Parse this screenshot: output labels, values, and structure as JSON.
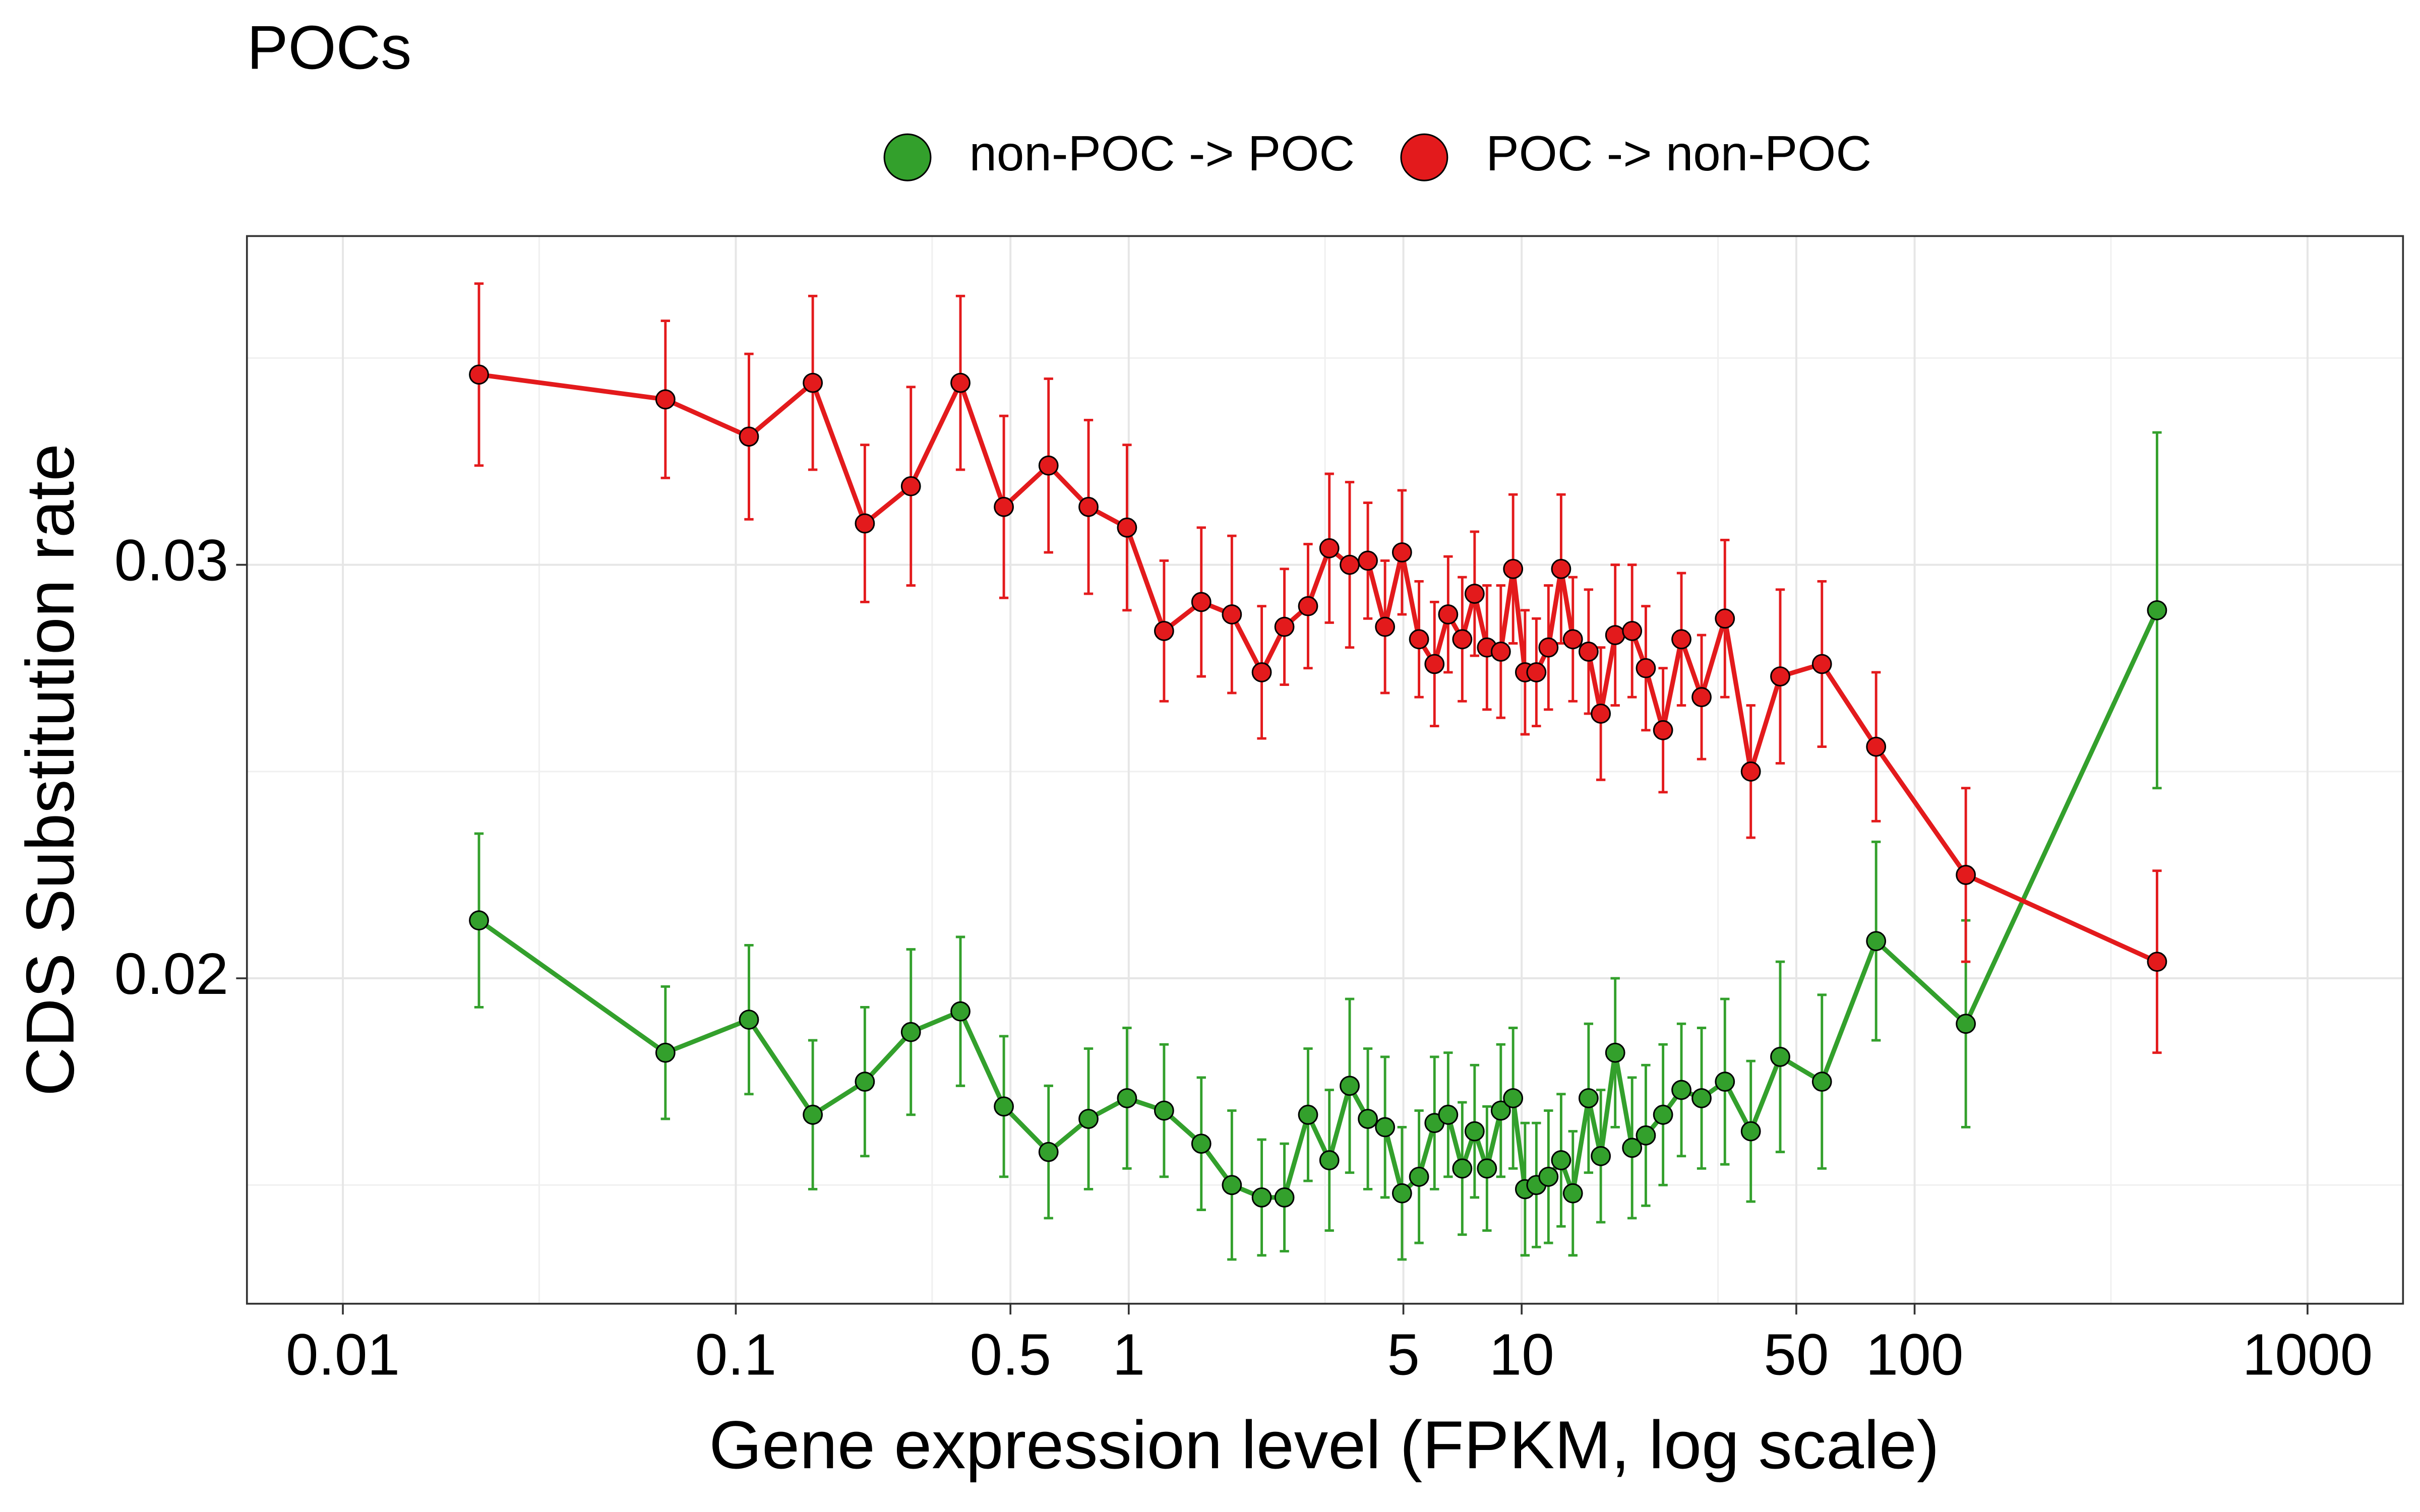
{
  "chart_data": {
    "type": "line",
    "title": "POCs",
    "x_label": "Gene expression level (FPKM, log scale)",
    "y_label": "CDS Substitution rate",
    "xlog": true,
    "grid": true,
    "xlim": [
      0.0057,
      1750
    ],
    "ylim": [
      0.01213,
      0.03795
    ],
    "xticks": [
      0.01,
      0.1,
      0.5,
      1,
      5,
      10,
      50,
      100,
      1000
    ],
    "yticks": [
      0.02,
      0.03
    ],
    "minor_xticks": [
      0.0316,
      0.316,
      3.16,
      31.6,
      316
    ],
    "minor_yticks": [
      0.015,
      0.025,
      0.035
    ],
    "legend": "top",
    "x": [
      0.0222,
      0.0662,
      0.108,
      0.157,
      0.213,
      0.279,
      0.373,
      0.481,
      0.625,
      0.79,
      0.99,
      1.23,
      1.53,
      1.83,
      2.18,
      2.49,
      2.86,
      3.24,
      3.65,
      4.06,
      4.49,
      4.96,
      5.48,
      6.0,
      6.5,
      7.06,
      7.59,
      8.16,
      8.85,
      9.51,
      10.2,
      10.9,
      11.7,
      12.6,
      13.5,
      14.8,
      15.9,
      17.3,
      19.1,
      20.7,
      22.9,
      25.5,
      28.7,
      32.9,
      38.3,
      45.5,
      58.1,
      79.8,
      135,
      414
    ],
    "series": [
      {
        "name": "non-POC -> POC",
        "color": "#33a02c",
        "values": [
          0.0214,
          0.0182,
          0.019,
          0.0167,
          0.0175,
          0.0187,
          0.0192,
          0.0169,
          0.0158,
          0.0166,
          0.0171,
          0.0168,
          0.016,
          0.015,
          0.0147,
          0.0147,
          0.0167,
          0.0156,
          0.0174,
          0.0166,
          0.0164,
          0.0148,
          0.0152,
          0.0165,
          0.0167,
          0.0154,
          0.0163,
          0.0154,
          0.0168,
          0.0171,
          0.0149,
          0.015,
          0.0152,
          0.0156,
          0.0148,
          0.0171,
          0.0157,
          0.0182,
          0.0159,
          0.0162,
          0.0167,
          0.0173,
          0.0171,
          0.0175,
          0.0163,
          0.0181,
          0.0175,
          0.0209,
          0.0189,
          0.0289
        ],
        "errors": [
          0.0021,
          0.0016,
          0.0018,
          0.0018,
          0.0018,
          0.002,
          0.0018,
          0.0017,
          0.0016,
          0.0017,
          0.0017,
          0.0016,
          0.0016,
          0.0018,
          0.0014,
          0.0013,
          0.0016,
          0.0017,
          0.0021,
          0.0017,
          0.0017,
          0.0016,
          0.0016,
          0.0016,
          0.0015,
          0.0016,
          0.0016,
          0.0015,
          0.0016,
          0.0017,
          0.0016,
          0.0015,
          0.0016,
          0.0016,
          0.0015,
          0.0018,
          0.0016,
          0.0018,
          0.0017,
          0.0017,
          0.0017,
          0.0016,
          0.0017,
          0.002,
          0.0017,
          0.0023,
          0.0021,
          0.0024,
          0.0025,
          0.0043
        ]
      },
      {
        "name": "POC -> non-POC",
        "color": "#e31a1c",
        "values": [
          0.0346,
          0.034,
          0.0331,
          0.0344,
          0.031,
          0.0319,
          0.0344,
          0.0314,
          0.0324,
          0.0314,
          0.0309,
          0.0284,
          0.0291,
          0.0288,
          0.0274,
          0.0285,
          0.029,
          0.0304,
          0.03,
          0.0301,
          0.0285,
          0.0303,
          0.0282,
          0.0276,
          0.0288,
          0.0282,
          0.0293,
          0.028,
          0.0279,
          0.0299,
          0.0274,
          0.0274,
          0.028,
          0.0299,
          0.0282,
          0.0279,
          0.0264,
          0.0283,
          0.0284,
          0.0275,
          0.026,
          0.0282,
          0.0268,
          0.0287,
          0.025,
          0.0273,
          0.0276,
          0.0256,
          0.0225,
          0.0204
        ],
        "errors": [
          0.0022,
          0.0019,
          0.002,
          0.0021,
          0.0019,
          0.0024,
          0.0021,
          0.0022,
          0.0021,
          0.0021,
          0.002,
          0.0017,
          0.0018,
          0.0019,
          0.0016,
          0.0014,
          0.0015,
          0.0018,
          0.002,
          0.0014,
          0.0016,
          0.0015,
          0.0014,
          0.0015,
          0.0014,
          0.0015,
          0.0015,
          0.0015,
          0.0016,
          0.0018,
          0.0015,
          0.0013,
          0.0015,
          0.0018,
          0.0015,
          0.0015,
          0.0016,
          0.0017,
          0.0016,
          0.0015,
          0.0015,
          0.0016,
          0.0015,
          0.0019,
          0.0016,
          0.0021,
          0.002,
          0.0018,
          0.0021,
          0.0022
        ]
      }
    ]
  }
}
